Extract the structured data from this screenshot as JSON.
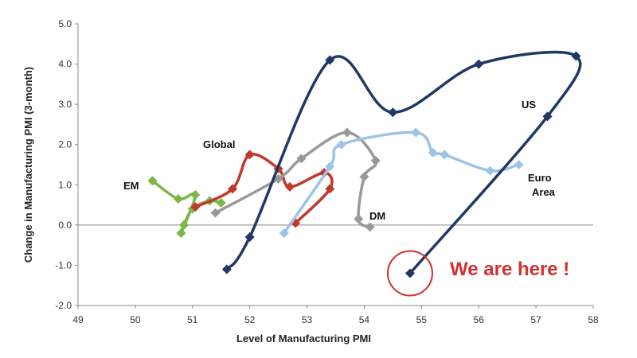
{
  "chart_data": {
    "type": "line",
    "xlabel": "Level of Manufacturing PMI",
    "ylabel": "Change in Manufacturing PMI (3-month)",
    "xlim": [
      49,
      58
    ],
    "ylim": [
      -2.0,
      5.0
    ],
    "x_ticks": [
      "49",
      "50",
      "51",
      "52",
      "53",
      "54",
      "55",
      "56",
      "57",
      "58"
    ],
    "y_ticks": [
      "-2.0",
      "-1.0",
      "0.0",
      "1.0",
      "2.0",
      "3.0",
      "4.0",
      "5.0"
    ],
    "grid": false,
    "series": [
      {
        "name": "EM",
        "color": "#7ab648",
        "points": [
          [
            50.3,
            1.1
          ],
          [
            50.75,
            0.65
          ],
          [
            51.05,
            0.75
          ],
          [
            50.8,
            -0.2
          ],
          [
            50.85,
            0.0
          ],
          [
            51.0,
            0.4
          ],
          [
            51.3,
            0.6
          ],
          [
            51.5,
            0.55
          ]
        ]
      },
      {
        "name": "Global",
        "color": "#c0392b",
        "points": [
          [
            51.05,
            0.45
          ],
          [
            51.7,
            0.9
          ],
          [
            52.0,
            1.75
          ],
          [
            52.5,
            1.4
          ],
          [
            52.7,
            0.95
          ],
          [
            53.3,
            1.3
          ],
          [
            53.4,
            0.9
          ],
          [
            52.8,
            0.05
          ]
        ]
      },
      {
        "name": "DM",
        "color": "#999999",
        "points": [
          [
            51.4,
            0.3
          ],
          [
            52.5,
            1.15
          ],
          [
            52.9,
            1.65
          ],
          [
            53.7,
            2.3
          ],
          [
            54.2,
            1.6
          ],
          [
            54.0,
            1.2
          ],
          [
            53.9,
            0.15
          ],
          [
            54.1,
            -0.05
          ]
        ]
      },
      {
        "name": "Euro Area",
        "color": "#9dc3e6",
        "points": [
          [
            52.6,
            -0.2
          ],
          [
            53.4,
            1.45
          ],
          [
            53.6,
            2.0
          ],
          [
            54.9,
            2.3
          ],
          [
            55.2,
            1.8
          ],
          [
            55.4,
            1.75
          ],
          [
            56.2,
            1.35
          ],
          [
            56.7,
            1.5
          ]
        ]
      },
      {
        "name": "US",
        "color": "#1f3864",
        "points": [
          [
            51.6,
            -1.1
          ],
          [
            52.0,
            -0.3
          ],
          [
            53.4,
            4.1
          ],
          [
            54.5,
            2.8
          ],
          [
            56.0,
            4.0
          ],
          [
            57.7,
            4.2
          ],
          [
            57.2,
            2.7
          ],
          [
            54.8,
            -1.2
          ]
        ]
      }
    ],
    "annotations": [
      {
        "text": "We are here !",
        "target_series": "US",
        "target_point": [
          54.8,
          -1.2
        ],
        "color": "#d32f2f"
      }
    ]
  }
}
